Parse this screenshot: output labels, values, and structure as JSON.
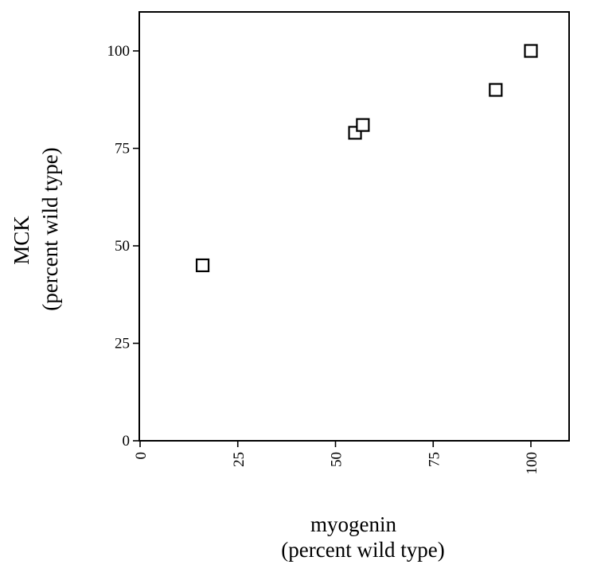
{
  "chart_data": {
    "type": "scatter",
    "title": "",
    "xlabel": [
      "myogenin",
      "(percent wild type)"
    ],
    "ylabel": [
      "MCK",
      "(percent wild type)"
    ],
    "xlim": [
      0,
      110
    ],
    "ylim": [
      0,
      110
    ],
    "xticks": [
      0,
      25,
      50,
      75,
      100
    ],
    "yticks": [
      0,
      25,
      50,
      75,
      100
    ],
    "x_tick_labels": [
      "0",
      "25",
      "50",
      "75",
      "100"
    ],
    "y_tick_labels": [
      "0",
      "25",
      "50",
      "75",
      "100"
    ],
    "grid": false,
    "marker": "open-square",
    "series": [
      {
        "points": [
          {
            "x": 16,
            "y": 45
          },
          {
            "x": 55,
            "y": 79
          },
          {
            "x": 57,
            "y": 81
          },
          {
            "x": 91,
            "y": 90
          },
          {
            "x": 100,
            "y": 100
          }
        ]
      }
    ]
  }
}
